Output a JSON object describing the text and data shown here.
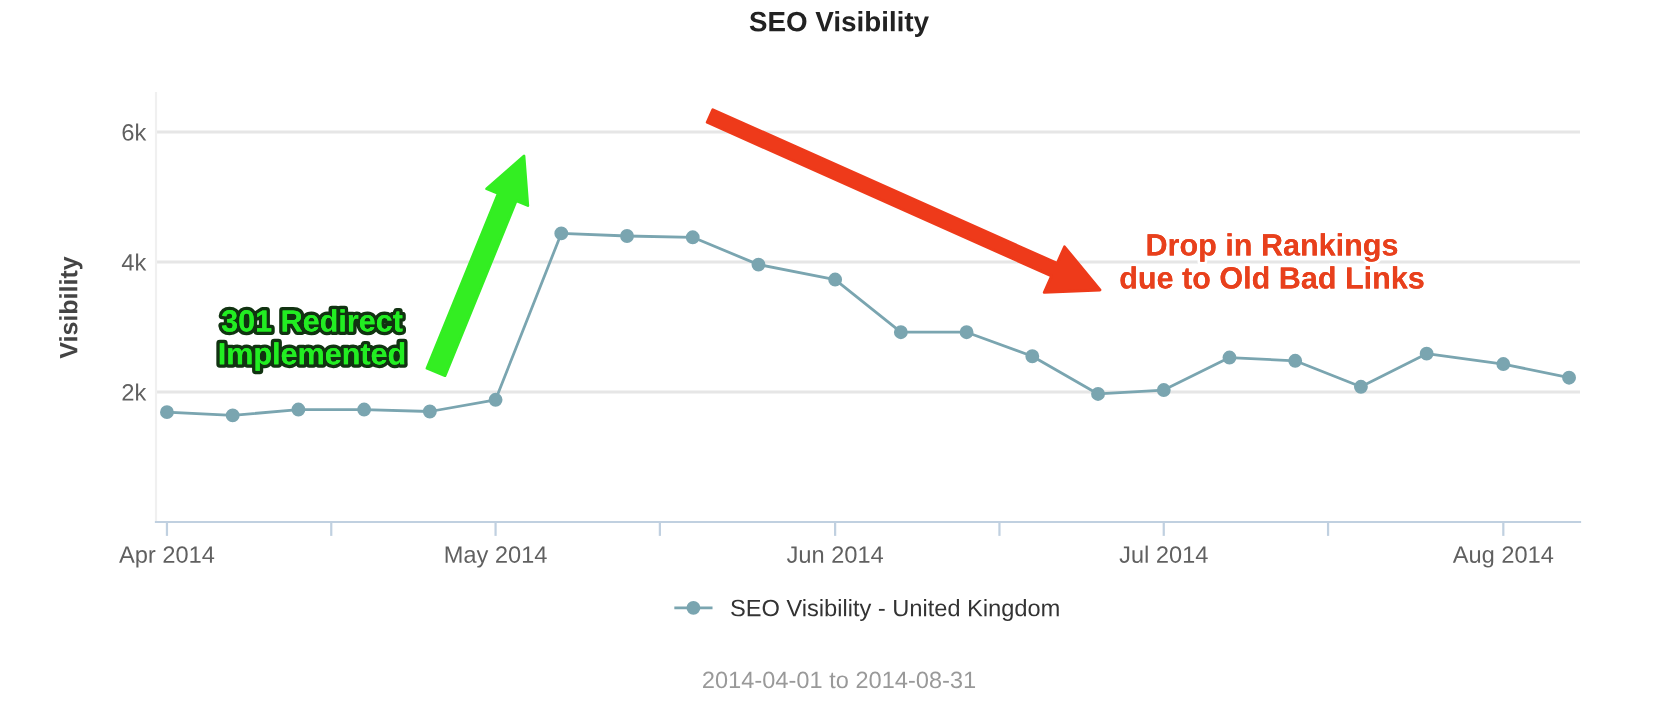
{
  "chart_data": {
    "type": "line",
    "title": "SEO Visibility",
    "ylabel": "Visibility",
    "x": [
      "2014-04-01",
      "2014-04-07",
      "2014-04-13",
      "2014-04-19",
      "2014-04-25",
      "2014-05-01",
      "2014-05-07",
      "2014-05-13",
      "2014-05-19",
      "2014-05-25",
      "2014-06-01",
      "2014-06-07",
      "2014-06-13",
      "2014-06-19",
      "2014-06-25",
      "2014-07-01",
      "2014-07-07",
      "2014-07-13",
      "2014-07-19",
      "2014-07-25",
      "2014-08-01",
      "2014-08-07"
    ],
    "series": [
      {
        "name": "SEO Visibility - United Kingdom",
        "color": "#7aa5b0",
        "values": [
          1690,
          1640,
          1730,
          1730,
          1700,
          1880,
          4440,
          4400,
          4380,
          3960,
          3730,
          2920,
          2920,
          2550,
          1970,
          2030,
          2530,
          2480,
          2080,
          2590,
          2430,
          2220
        ]
      }
    ],
    "xlim": [
      "2014-03-31",
      "2014-08-08"
    ],
    "xticks": [
      {
        "value": "2014-04-01",
        "label": "Apr 2014"
      },
      {
        "value": "2014-04-16",
        "label": null
      },
      {
        "value": "2014-05-01",
        "label": "May 2014"
      },
      {
        "value": "2014-05-16",
        "label": null
      },
      {
        "value": "2014-06-01",
        "label": "Jun 2014"
      },
      {
        "value": "2014-06-16",
        "label": null
      },
      {
        "value": "2014-07-01",
        "label": "Jul 2014"
      },
      {
        "value": "2014-07-16",
        "label": null
      },
      {
        "value": "2014-08-01",
        "label": "Aug 2014"
      }
    ],
    "ylim": [
      0,
      6600
    ],
    "yticks": [
      {
        "value": 2000,
        "label": "2k"
      },
      {
        "value": 4000,
        "label": "4k"
      },
      {
        "value": 6000,
        "label": "6k"
      }
    ],
    "grid": "y",
    "legend": "bottom",
    "marker": "circle",
    "line_style": "solid",
    "annotations": [
      "301 Redirect\nImplemented",
      "Drop in Rankings\ndue to Old Bad Links",
      "2014-04-01 to 2014-08-31"
    ]
  }
}
